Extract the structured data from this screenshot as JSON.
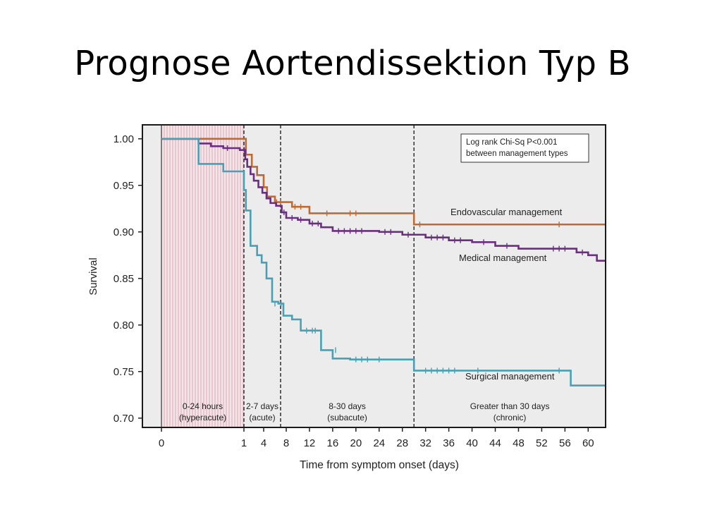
{
  "slide": {
    "title": "Prognose Aortendissektion Typ B"
  },
  "chart_data": {
    "type": "line",
    "step": true,
    "xlabel": "Time from symptom onset (days)",
    "ylabel": "Survival",
    "ylim": [
      0.69,
      1.015
    ],
    "x_ticks": [
      "0",
      "1",
      "4",
      "8",
      "12",
      "16",
      "20",
      "24",
      "28",
      "32",
      "36",
      "40",
      "44",
      "48",
      "52",
      "56",
      "60"
    ],
    "y_ticks": [
      "0.70",
      "0.75",
      "0.80",
      "0.85",
      "0.90",
      "0.95",
      "1.00"
    ],
    "grid": false,
    "annotation": {
      "lines": [
        "Log rank Chi-Sq P<0.001",
        "between management types"
      ],
      "placement": "top-right"
    },
    "phases": [
      {
        "label": "0-24 hours",
        "sublabel": "(hyperacute)",
        "start": 0,
        "end": 1,
        "shaded": true
      },
      {
        "label": "2-7 days",
        "sublabel": "(acute)",
        "start": 1,
        "end": 7
      },
      {
        "label": "8-30 days",
        "sublabel": "(subacute)",
        "start": 7,
        "end": 30
      },
      {
        "label": "Greater than 30 days",
        "sublabel": "(chronic)",
        "start": 30,
        "end": 63
      }
    ],
    "series": [
      {
        "name": "Endovascular management",
        "color": "#c06a32",
        "points": [
          [
            0,
            1.0
          ],
          [
            0.95,
            1.0
          ],
          [
            1.3,
            0.983
          ],
          [
            2.2,
            0.97
          ],
          [
            3,
            0.961
          ],
          [
            4,
            0.948
          ],
          [
            4.6,
            0.938
          ],
          [
            6,
            0.932
          ],
          [
            9,
            0.927
          ],
          [
            12,
            0.92
          ],
          [
            30,
            0.908
          ],
          [
            63,
            0.908
          ]
        ],
        "censored": [
          [
            6.3,
            0.932
          ],
          [
            7,
            0.932
          ],
          [
            9.5,
            0.927
          ],
          [
            10.5,
            0.927
          ],
          [
            15,
            0.92
          ],
          [
            19,
            0.92
          ],
          [
            20,
            0.92
          ],
          [
            31,
            0.908
          ],
          [
            55,
            0.908
          ]
        ]
      },
      {
        "name": "Medical management",
        "color": "#6a2f7e",
        "points": [
          [
            0,
            1.0
          ],
          [
            0.45,
            0.995
          ],
          [
            0.6,
            0.992
          ],
          [
            0.75,
            0.99
          ],
          [
            0.95,
            0.988
          ],
          [
            1.2,
            0.978
          ],
          [
            1.5,
            0.97
          ],
          [
            2,
            0.962
          ],
          [
            2.5,
            0.955
          ],
          [
            3.2,
            0.948
          ],
          [
            3.8,
            0.942
          ],
          [
            4.5,
            0.936
          ],
          [
            5.2,
            0.931
          ],
          [
            6.2,
            0.928
          ],
          [
            7.2,
            0.921
          ],
          [
            8,
            0.915
          ],
          [
            10,
            0.913
          ],
          [
            12,
            0.909
          ],
          [
            14,
            0.905
          ],
          [
            16,
            0.901
          ],
          [
            22,
            0.901
          ],
          [
            24,
            0.9
          ],
          [
            28,
            0.897
          ],
          [
            30,
            0.897
          ],
          [
            32,
            0.894
          ],
          [
            36,
            0.891
          ],
          [
            40,
            0.889
          ],
          [
            44,
            0.885
          ],
          [
            48,
            0.882
          ],
          [
            58,
            0.878
          ],
          [
            60,
            0.875
          ],
          [
            61.5,
            0.869
          ],
          [
            63,
            0.869
          ]
        ],
        "censored": [
          [
            0.8,
            0.99
          ],
          [
            1.05,
            0.988
          ],
          [
            7.6,
            0.921
          ],
          [
            9,
            0.915
          ],
          [
            10.5,
            0.913
          ],
          [
            12.5,
            0.909
          ],
          [
            13.5,
            0.909
          ],
          [
            17,
            0.901
          ],
          [
            18,
            0.901
          ],
          [
            19,
            0.901
          ],
          [
            20,
            0.901
          ],
          [
            21,
            0.901
          ],
          [
            25,
            0.9
          ],
          [
            26,
            0.9
          ],
          [
            29,
            0.897
          ],
          [
            33,
            0.894
          ],
          [
            34,
            0.894
          ],
          [
            35,
            0.894
          ],
          [
            37,
            0.891
          ],
          [
            38,
            0.891
          ],
          [
            42,
            0.889
          ],
          [
            46,
            0.885
          ],
          [
            54,
            0.882
          ],
          [
            55,
            0.882
          ],
          [
            56,
            0.882
          ],
          [
            59,
            0.878
          ]
        ]
      },
      {
        "name": "Surgical management",
        "color": "#4aa0b2",
        "points": [
          [
            0,
            1.0
          ],
          [
            0.45,
            0.973
          ],
          [
            0.75,
            0.965
          ],
          [
            1,
            0.945
          ],
          [
            1.3,
            0.923
          ],
          [
            2,
            0.885
          ],
          [
            3,
            0.875
          ],
          [
            3.7,
            0.867
          ],
          [
            4.5,
            0.85
          ],
          [
            5.5,
            0.825
          ],
          [
            6.6,
            0.823
          ],
          [
            7.5,
            0.81
          ],
          [
            9,
            0.806
          ],
          [
            10.5,
            0.794
          ],
          [
            14,
            0.773
          ],
          [
            16,
            0.764
          ],
          [
            19,
            0.763
          ],
          [
            30,
            0.751
          ],
          [
            57,
            0.735
          ],
          [
            63,
            0.735
          ]
        ],
        "censored": [
          [
            6,
            0.823
          ],
          [
            7.1,
            0.823
          ],
          [
            11.5,
            0.794
          ],
          [
            12.5,
            0.794
          ],
          [
            13,
            0.794
          ],
          [
            16.5,
            0.773
          ],
          [
            20,
            0.763
          ],
          [
            21,
            0.763
          ],
          [
            22,
            0.763
          ],
          [
            24,
            0.763
          ],
          [
            32,
            0.751
          ],
          [
            33,
            0.751
          ],
          [
            34,
            0.751
          ],
          [
            35,
            0.751
          ],
          [
            36,
            0.751
          ],
          [
            37,
            0.751
          ],
          [
            41,
            0.751
          ],
          [
            55,
            0.751
          ]
        ]
      }
    ]
  }
}
